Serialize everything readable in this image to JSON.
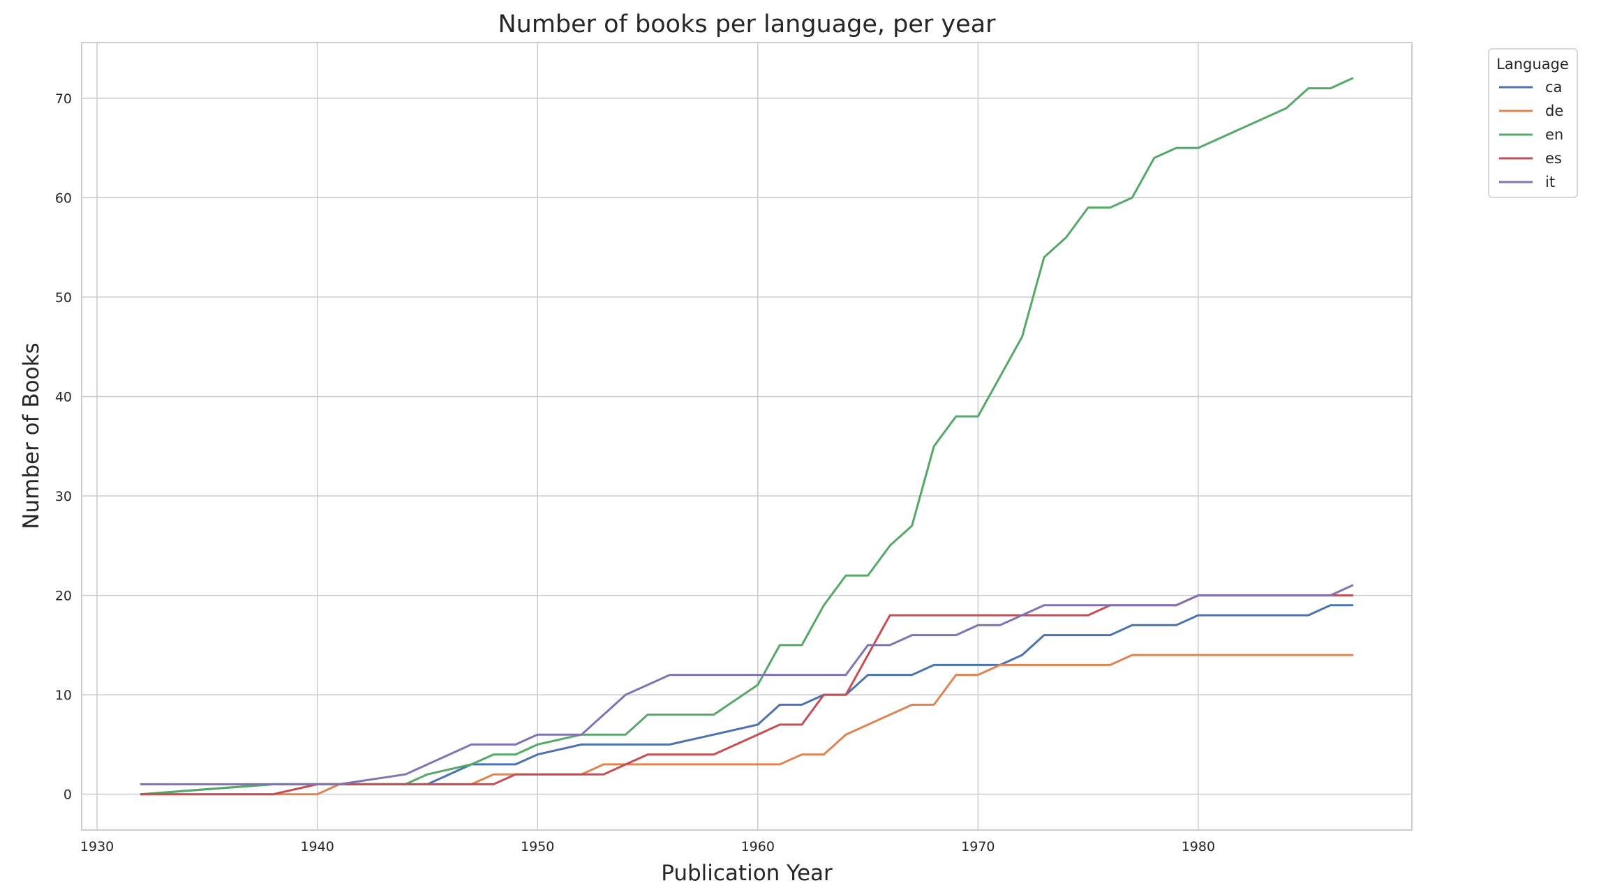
{
  "chart_data": {
    "type": "line",
    "title": "Number of books per language, per year",
    "xlabel": "Publication Year",
    "ylabel": "Number of Books",
    "xlim": [
      1929.3,
      1989.7
    ],
    "ylim": [
      -3.6,
      75.6
    ],
    "xticks": [
      1930,
      1940,
      1950,
      1960,
      1970,
      1980
    ],
    "yticks": [
      0,
      10,
      20,
      30,
      40,
      50,
      60,
      70
    ],
    "grid": true,
    "legend": {
      "title": "Language",
      "placement": "upper-right-outside"
    },
    "series": [
      {
        "name": "ca",
        "color": "#4c72b0",
        "x": [
          1932,
          1938,
          1940,
          1944,
          1945,
          1947,
          1948,
          1949,
          1950,
          1952,
          1953,
          1954,
          1955,
          1956,
          1958,
          1960,
          1961,
          1962,
          1963,
          1964,
          1965,
          1967,
          1968,
          1970,
          1971,
          1972,
          1973,
          1975,
          1976,
          1977,
          1979,
          1980,
          1985,
          1986,
          1987
        ],
        "y": [
          0,
          1,
          1,
          1,
          1,
          3,
          3,
          3,
          4,
          5,
          5,
          5,
          5,
          5,
          6,
          7,
          9,
          9,
          10,
          10,
          12,
          12,
          13,
          13,
          13,
          14,
          16,
          16,
          16,
          17,
          17,
          18,
          18,
          19,
          19
        ]
      },
      {
        "name": "de",
        "color": "#dd8452",
        "x": [
          1932,
          1940,
          1941,
          1947,
          1948,
          1949,
          1952,
          1953,
          1954,
          1956,
          1958,
          1960,
          1961,
          1962,
          1963,
          1964,
          1967,
          1968,
          1969,
          1970,
          1971,
          1972,
          1975,
          1976,
          1977,
          1980,
          1985,
          1987
        ],
        "y": [
          0,
          0,
          1,
          1,
          2,
          2,
          2,
          3,
          3,
          3,
          3,
          3,
          3,
          4,
          4,
          6,
          9,
          9,
          12,
          12,
          13,
          13,
          13,
          13,
          14,
          14,
          14,
          14
        ]
      },
      {
        "name": "en",
        "color": "#55a868",
        "x": [
          1932,
          1938,
          1940,
          1944,
          1945,
          1947,
          1948,
          1949,
          1950,
          1952,
          1953,
          1954,
          1955,
          1956,
          1958,
          1960,
          1961,
          1962,
          1963,
          1964,
          1965,
          1966,
          1967,
          1968,
          1969,
          1970,
          1971,
          1972,
          1973,
          1974,
          1975,
          1976,
          1977,
          1978,
          1979,
          1980,
          1984,
          1985,
          1986,
          1987
        ],
        "y": [
          0,
          1,
          1,
          1,
          2,
          3,
          4,
          4,
          5,
          6,
          6,
          6,
          8,
          8,
          8,
          11,
          15,
          15,
          19,
          22,
          22,
          25,
          27,
          35,
          38,
          38,
          42,
          46,
          54,
          56,
          59,
          59,
          60,
          64,
          65,
          65,
          69,
          71,
          71,
          72
        ]
      },
      {
        "name": "es",
        "color": "#c44e52",
        "x": [
          1932,
          1938,
          1940,
          1944,
          1948,
          1949,
          1953,
          1955,
          1958,
          1960,
          1961,
          1962,
          1963,
          1964,
          1966,
          1970,
          1975,
          1976,
          1979,
          1980,
          1987
        ],
        "y": [
          0,
          0,
          1,
          1,
          1,
          2,
          2,
          4,
          4,
          6,
          7,
          7,
          10,
          10,
          18,
          18,
          18,
          19,
          19,
          20,
          20
        ]
      },
      {
        "name": "it",
        "color": "#8172b3",
        "x": [
          1932,
          1940,
          1941,
          1944,
          1947,
          1949,
          1950,
          1952,
          1954,
          1956,
          1960,
          1964,
          1965,
          1966,
          1967,
          1969,
          1970,
          1971,
          1973,
          1976,
          1979,
          1980,
          1986,
          1987
        ],
        "y": [
          1,
          1,
          1,
          2,
          5,
          5,
          6,
          6,
          10,
          12,
          12,
          12,
          15,
          15,
          16,
          16,
          17,
          17,
          19,
          19,
          19,
          20,
          20,
          21
        ]
      }
    ]
  }
}
